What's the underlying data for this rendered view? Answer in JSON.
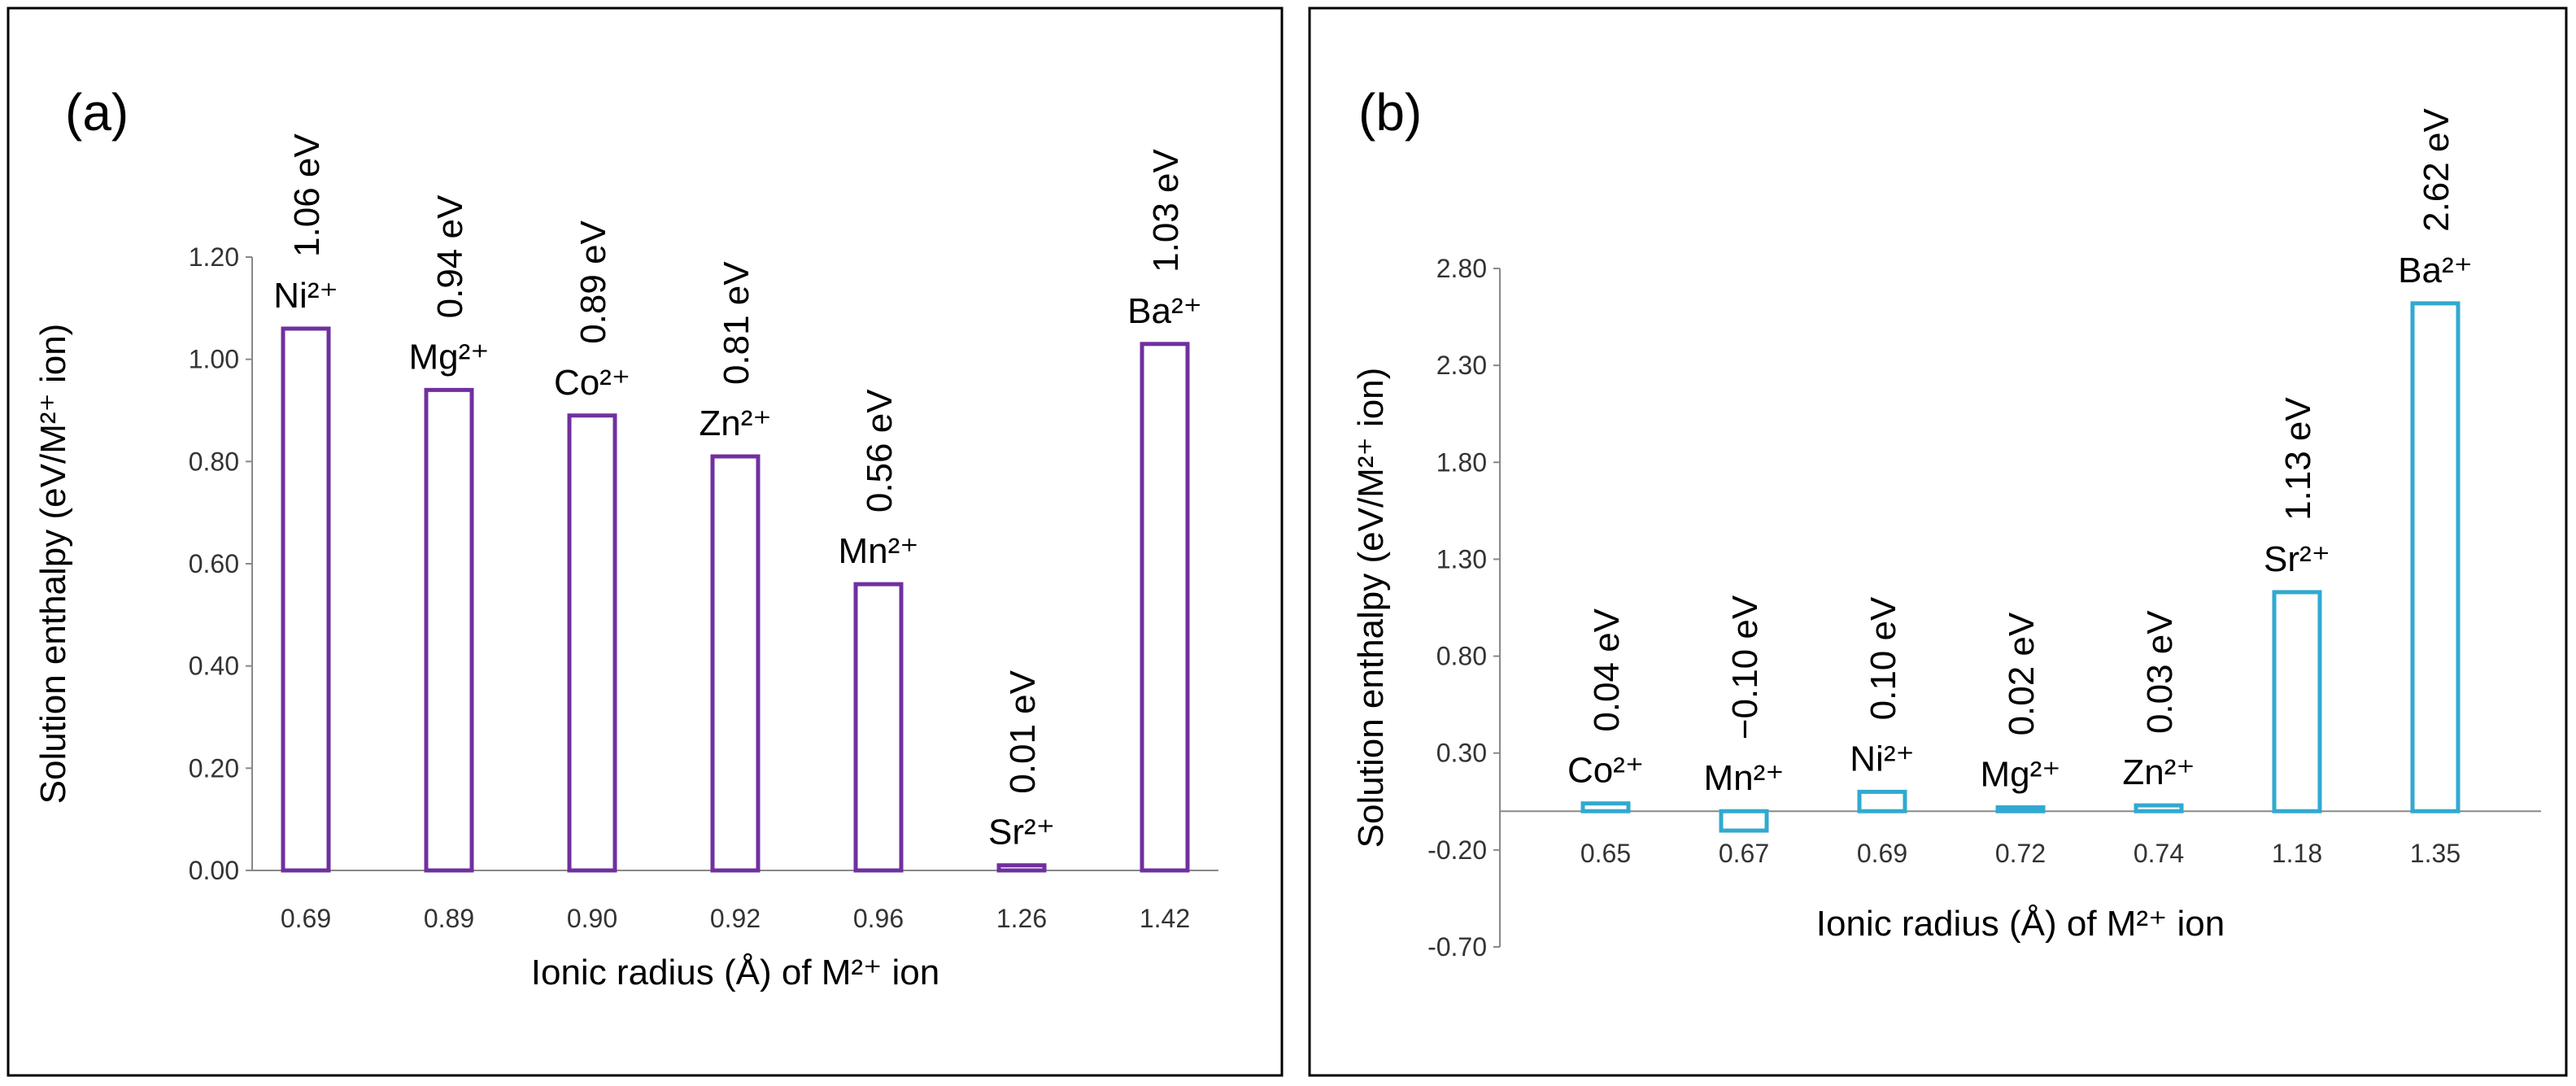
{
  "chart_data": [
    {
      "type": "bar",
      "panel_label": "(a)",
      "x_label": "Ionic radius (Å) of M²⁺ ion",
      "y_label": "Solution enthalpy (eV/M²⁺ ion)",
      "categories": [
        "0.69",
        "0.89",
        "0.90",
        "0.92",
        "0.96",
        "1.26",
        "1.42"
      ],
      "bar_labels": [
        "Ni²⁺",
        "Mg²⁺",
        "Co²⁺",
        "Zn²⁺",
        "Mn²⁺",
        "Sr²⁺",
        "Ba²⁺"
      ],
      "values": [
        1.06,
        0.94,
        0.89,
        0.81,
        0.56,
        0.01,
        1.03
      ],
      "value_labels": [
        "1.06 eV",
        "0.94 eV",
        "0.89 eV",
        "0.81 eV",
        "0.56 eV",
        "0.01 eV",
        "1.03 eV"
      ],
      "color": "#7030a0",
      "ylim": [
        0,
        1.2
      ],
      "yticks": [
        {
          "value": 0,
          "label": "0.00"
        },
        {
          "value": 0.2,
          "label": "0.20"
        },
        {
          "value": 0.4,
          "label": "0.40"
        },
        {
          "value": 0.6,
          "label": "0.60"
        },
        {
          "value": 0.8,
          "label": "0.80"
        },
        {
          "value": 1,
          "label": "1.00"
        },
        {
          "value": 1.2,
          "label": "1.20"
        }
      ],
      "grid": false
    },
    {
      "type": "bar",
      "panel_label": "(b)",
      "x_label": "Ionic radius (Å) of M²⁺ ion",
      "y_label": "Solution enthalpy (eV/M²⁺ ion)",
      "categories": [
        "0.65",
        "0.67",
        "0.69",
        "0.72",
        "0.74",
        "1.18",
        "1.35"
      ],
      "bar_labels": [
        "Co²⁺",
        "Mn²⁺",
        "Ni²⁺",
        "Mg²⁺",
        "Zn²⁺",
        "Sr²⁺",
        "Ba²⁺"
      ],
      "values": [
        0.04,
        -0.1,
        0.1,
        0.02,
        0.03,
        1.13,
        2.62
      ],
      "value_labels": [
        "0.04 eV",
        "−0.10 eV",
        "0.10 eV",
        "0.02 eV",
        "0.03 eV",
        "1.13 eV",
        "2.62 eV"
      ],
      "color": "#31a9d0",
      "ylim": [
        -0.7,
        2.8
      ],
      "yticks": [
        {
          "value": -0.7,
          "label": "-0.70"
        },
        {
          "value": -0.2,
          "label": "-0.20"
        },
        {
          "value": 0.3,
          "label": "0.30"
        },
        {
          "value": 0.8,
          "label": "0.80"
        },
        {
          "value": 1.3,
          "label": "1.30"
        },
        {
          "value": 1.8,
          "label": "1.80"
        },
        {
          "value": 2.3,
          "label": "2.30"
        },
        {
          "value": 2.8,
          "label": "2.80"
        }
      ],
      "grid": false
    }
  ]
}
